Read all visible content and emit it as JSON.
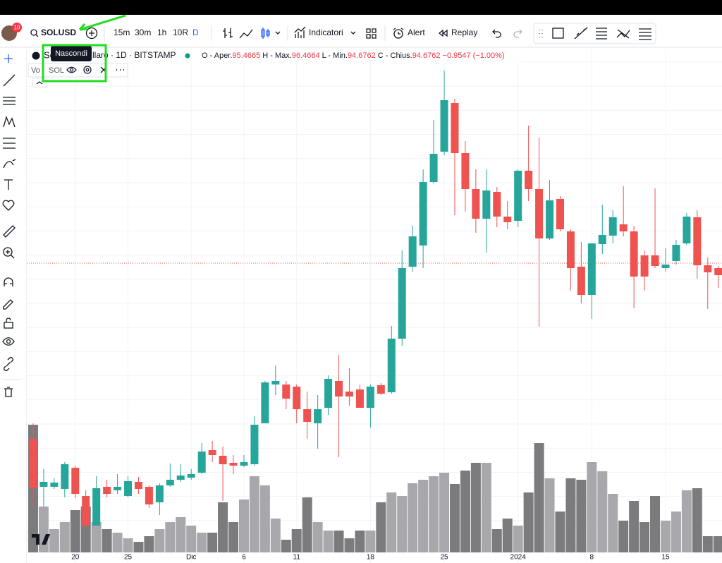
{
  "toolbar": {
    "badge": "10",
    "symbol": "SOLUSD",
    "intervals": [
      "15m",
      "30m",
      "1h",
      "10R",
      "D"
    ],
    "indicators": "Indicatori",
    "alert": "Alert",
    "replay": "Replay"
  },
  "legend": {
    "title_start": "So",
    "title_end": "llaro · 1D · BITSTAMP",
    "tooltip": "Nascondi",
    "o": "O",
    "o_label": "Aper.",
    "o_value": "95.4665",
    "h": "H",
    "h_label": "Max.",
    "h_value": "96.4664",
    "l": "L",
    "l_label": "Min.",
    "l_value": "94.6762",
    "c": "C",
    "c_label": "Chius.",
    "c_value": "94.6762",
    "change": "−0.9547 (−1.00%)",
    "volume_start": "Vo",
    "volume_symbol": "SOL"
  },
  "chart_data": {
    "type": "candlestick",
    "categories": [
      null,
      null,
      null,
      null,
      "20",
      null,
      null,
      null,
      null,
      "25",
      null,
      null,
      null,
      null,
      null,
      "Dic",
      null,
      null,
      null,
      null,
      "6",
      null,
      null,
      null,
      null,
      "11",
      null,
      null,
      null,
      null,
      null,
      null,
      "18",
      null,
      null,
      null,
      null,
      null,
      null,
      "25",
      null,
      null,
      null,
      null,
      null,
      null,
      "2024",
      null,
      null,
      null,
      null,
      null,
      null,
      "8",
      null,
      null,
      null,
      null,
      null,
      null,
      "15",
      null,
      null,
      null,
      null,
      null
    ],
    "open": [
      71.0,
      64.2,
      64.2,
      63.9,
      66.9,
      62.9,
      58.7,
      64.2,
      63.7,
      62.9,
      64.9,
      64.2,
      62.0,
      64.4,
      65.2,
      65.5,
      66.2,
      69.4,
      68.6,
      67.6,
      67.2,
      67.4,
      73.2,
      78.7,
      78.7,
      78.4,
      75.2,
      73.2,
      75.4,
      79.2,
      77.7,
      78.0,
      75.4,
      78.6,
      77.6,
      85.2,
      95.4,
      98.4,
      107.4,
      111.7,
      118.6,
      111.5,
      106.4,
      102.2,
      106.0,
      102.5,
      101.9,
      109.0,
      106.4,
      99.4,
      105.0,
      100.4,
      95.4,
      91.4,
      98.6,
      99.8,
      101.4,
      100.4,
      97.0,
      97.0,
      95.2,
      96.2,
      98.7,
      102.4,
      95.6,
      95.2
    ],
    "high": [
      73.2,
      66.7,
      65.4,
      67.7,
      67.2,
      63.7,
      65.7,
      65.2,
      66.0,
      65.7,
      65.6,
      64.4,
      64.7,
      67.5,
      67.4,
      66.7,
      70.4,
      70.7,
      69.9,
      68.7,
      68.7,
      74.2,
      79.2,
      81.4,
      79.2,
      78.7,
      77.7,
      77.2,
      80.0,
      82.9,
      81.0,
      78.7,
      78.7,
      78.9,
      87.0,
      97.7,
      101.2,
      109.2,
      116.2,
      123.2,
      119.2,
      113.2,
      109.2,
      109.2,
      106.7,
      104.7,
      109.2,
      115.4,
      113.7,
      107.7,
      105.4,
      100.7,
      98.9,
      98.7,
      104.2,
      103.4,
      106.8,
      101.2,
      97.7,
      106.5,
      98.0,
      99.2,
      103.0,
      103.4,
      96.7,
      95.5
    ],
    "low": [
      61.2,
      61.4,
      63.9,
      62.7,
      62.6,
      58.4,
      58.7,
      62.7,
      63.2,
      62.7,
      63.2,
      61.2,
      60.2,
      64.2,
      64.9,
      65.2,
      66.0,
      67.7,
      62.2,
      66.0,
      67.0,
      67.2,
      73.2,
      77.2,
      75.2,
      73.2,
      71.0,
      69.6,
      74.4,
      68.4,
      75.7,
      75.4,
      72.6,
      77.2,
      77.4,
      84.2,
      94.7,
      95.2,
      107.2,
      111.2,
      102.7,
      103.2,
      100.2,
      97.4,
      101.0,
      100.7,
      101.0,
      104.7,
      86.9,
      99.2,
      100.4,
      92.0,
      90.2,
      88.0,
      97.2,
      98.7,
      99.7,
      89.5,
      92.0,
      95.2,
      94.7,
      95.7,
      98.5,
      93.7,
      89.4,
      92.4
    ],
    "close": [
      64.0,
      64.9,
      64.8,
      67.4,
      63.2,
      58.7,
      64.0,
      63.2,
      64.2,
      65.0,
      63.9,
      61.7,
      64.4,
      65.2,
      65.8,
      66.0,
      69.2,
      68.7,
      67.4,
      67.2,
      67.7,
      73.0,
      79.0,
      79.2,
      76.7,
      75.2,
      73.4,
      75.2,
      79.5,
      77.0,
      77.0,
      75.4,
      78.4,
      77.4,
      85.2,
      95.2,
      99.7,
      107.4,
      111.4,
      119.0,
      111.5,
      106.4,
      102.2,
      106.2,
      102.5,
      101.7,
      109.0,
      106.4,
      99.4,
      104.8,
      100.7,
      95.2,
      91.4,
      98.7,
      99.9,
      102.4,
      100.4,
      94.0,
      94.0,
      95.5,
      95.7,
      98.5,
      102.5,
      95.6,
      94.6,
      94.2
    ],
    "volume": [
      181,
      65,
      33,
      43,
      60,
      65,
      43,
      33,
      28,
      20,
      15,
      23,
      33,
      43,
      50,
      38,
      28,
      28,
      71,
      43,
      75,
      108,
      95,
      48,
      18,
      33,
      78,
      43,
      31,
      31,
      20,
      31,
      31,
      71,
      85,
      80,
      98,
      103,
      108,
      113,
      97,
      116,
      127,
      127,
      33,
      48,
      38,
      85,
      155,
      105,
      58,
      105,
      103,
      128,
      115,
      83,
      45,
      73,
      43,
      80,
      45,
      58,
      88,
      91,
      23,
      23
    ],
    "ylim": [
      53.4,
      124.4
    ],
    "vlim": [
      0,
      200
    ],
    "price_line": 95.9,
    "grid": true,
    "up_color": "#26a69a",
    "down_color": "#ef5350",
    "vol_up_color": "#a7a7ac",
    "vol_down_color": "#7b7b7e",
    "price_line_color": "#ef5350"
  }
}
